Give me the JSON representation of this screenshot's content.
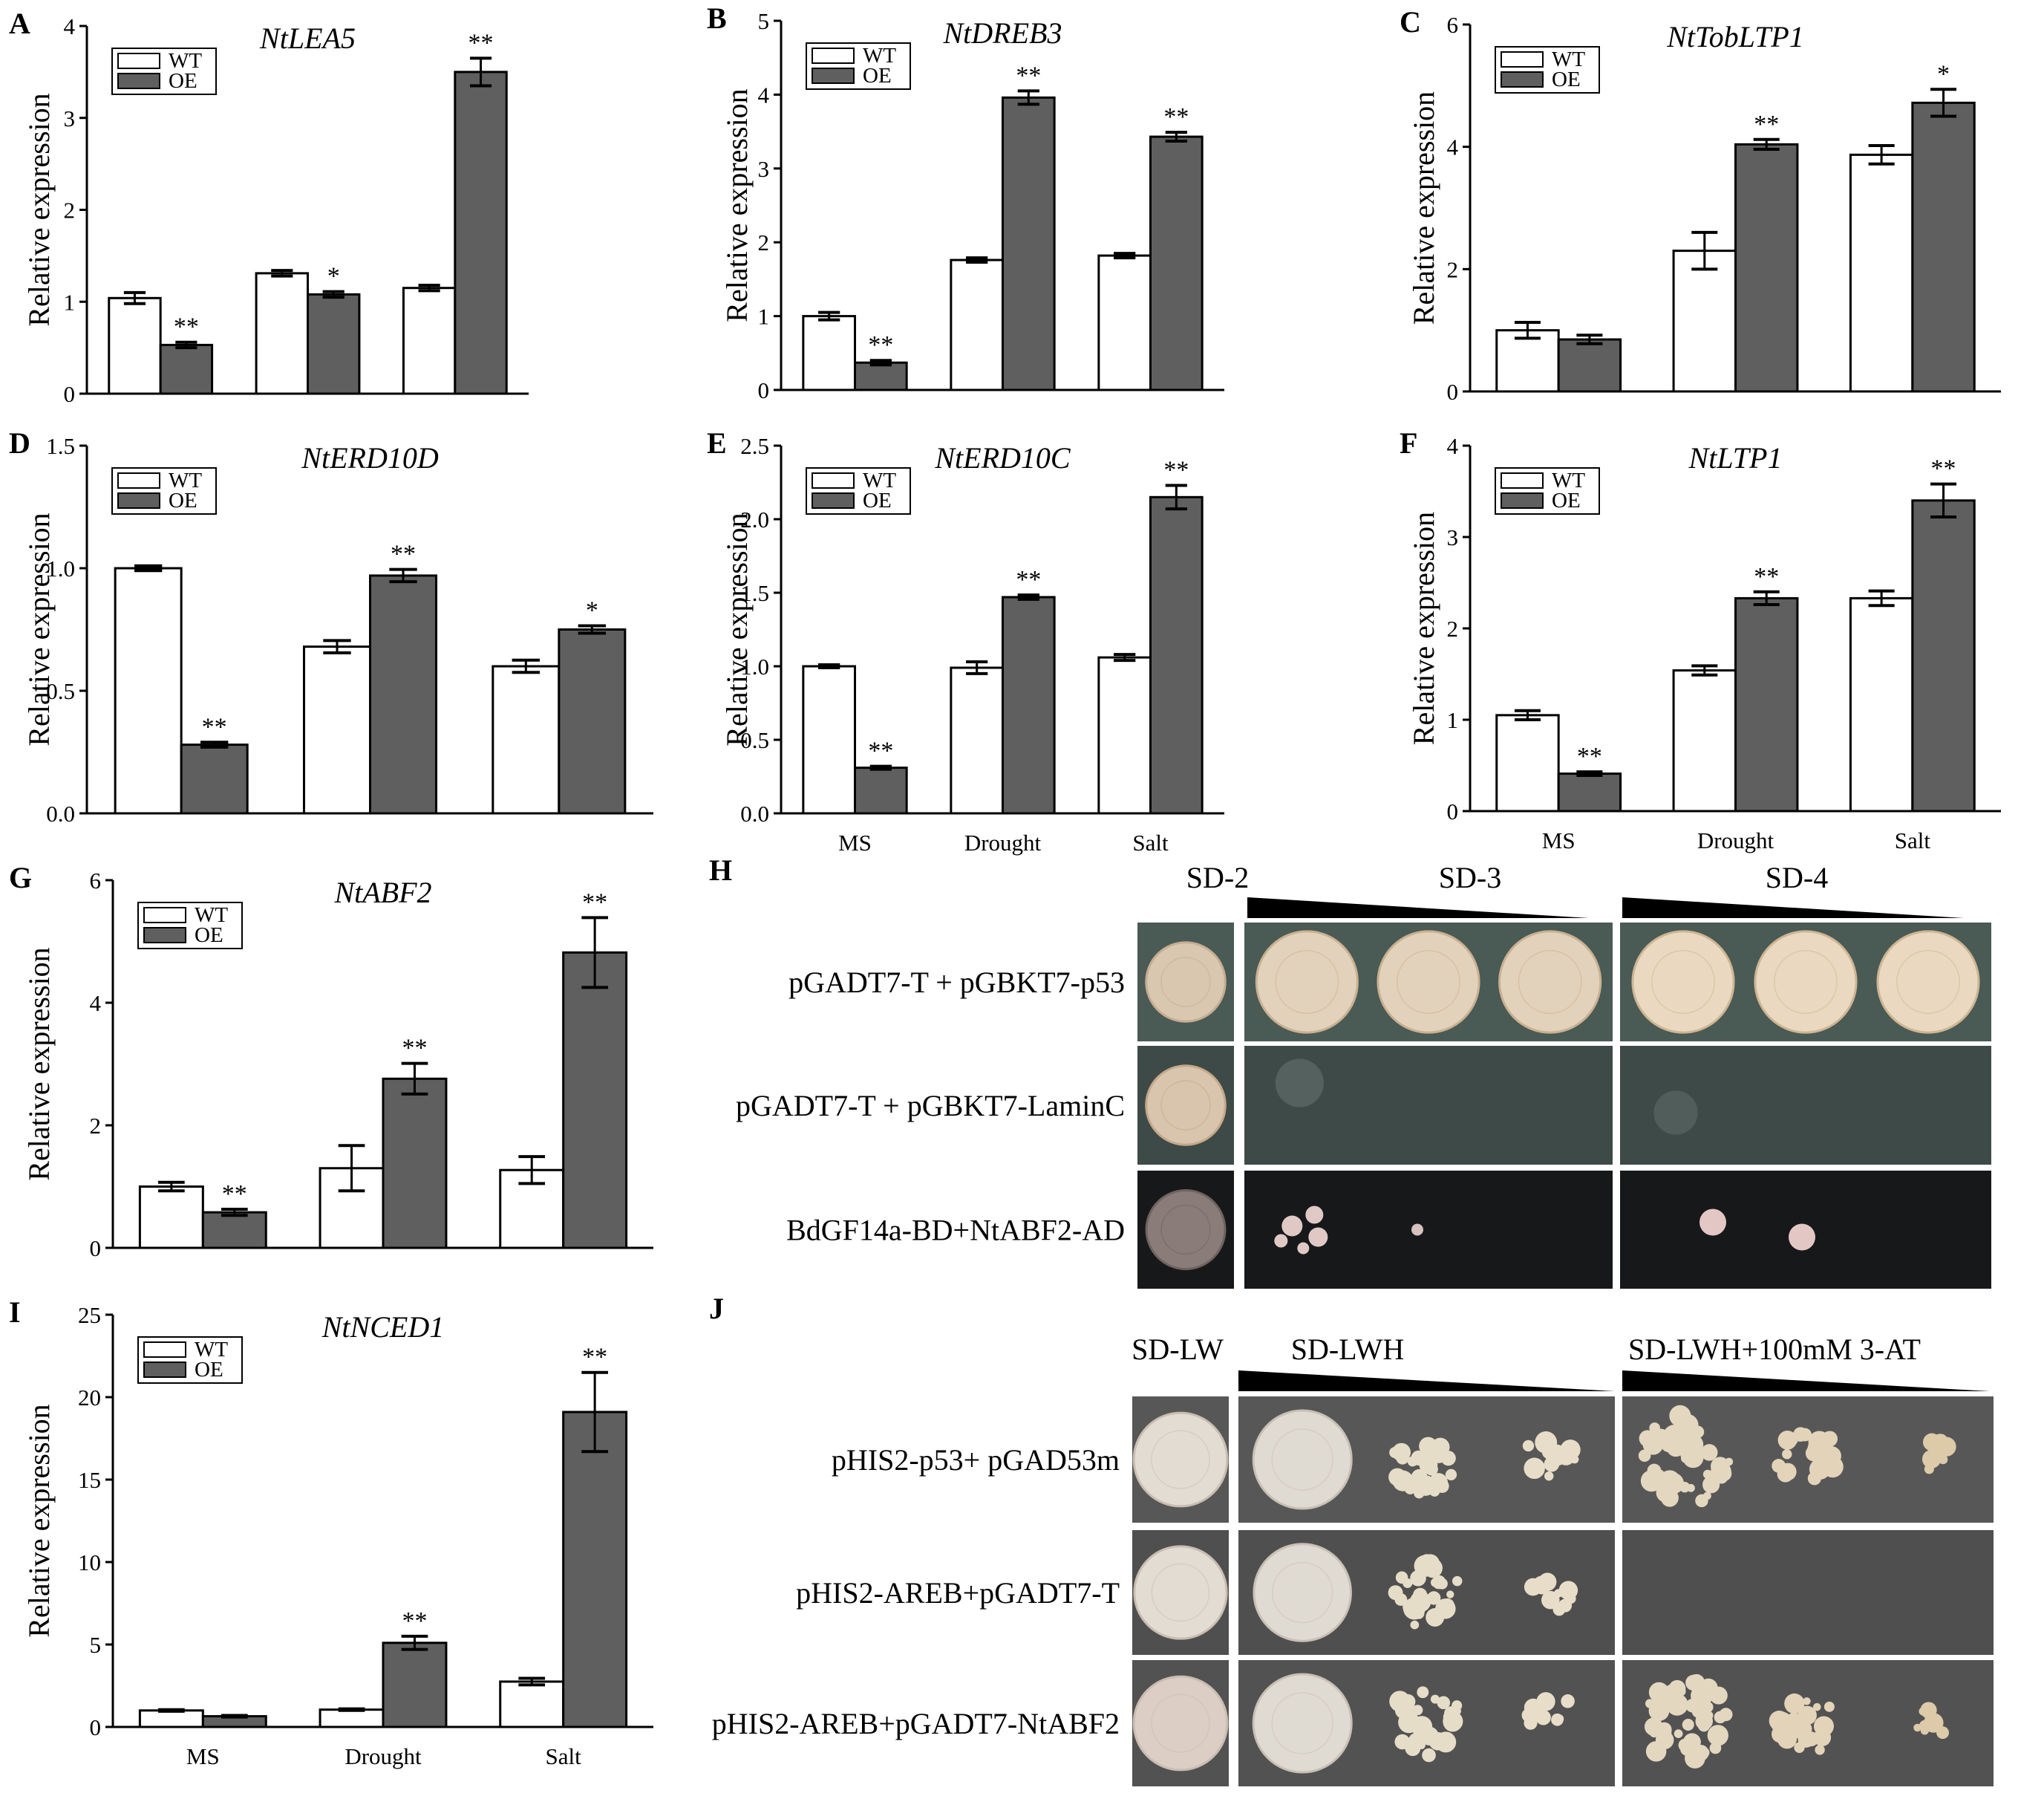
{
  "chart_data": [
    {
      "panel": "A",
      "type": "bar",
      "title": "NtLEA5",
      "ylabel": "Relative expression",
      "categories": [
        "",
        "",
        ""
      ],
      "ylim": [
        0,
        4
      ],
      "yticks": [
        0,
        1,
        2,
        3,
        4
      ],
      "series": [
        {
          "name": "WT",
          "values": [
            1.04,
            1.31,
            1.15
          ],
          "errors": [
            0.06,
            0.03,
            0.03
          ]
        },
        {
          "name": "OE",
          "values": [
            0.53,
            1.08,
            3.5
          ],
          "errors": [
            0.03,
            0.03,
            0.15
          ]
        }
      ],
      "significance": [
        "**",
        "*",
        "**"
      ]
    },
    {
      "panel": "B",
      "type": "bar",
      "title": "NtDREB3",
      "ylabel": "Relative expression",
      "categories": [
        "",
        "",
        ""
      ],
      "ylim": [
        0,
        5
      ],
      "yticks": [
        0,
        1,
        2,
        3,
        4,
        5
      ],
      "series": [
        {
          "name": "WT",
          "values": [
            1.0,
            1.76,
            1.82
          ],
          "errors": [
            0.05,
            0.03,
            0.03
          ]
        },
        {
          "name": "OE",
          "values": [
            0.37,
            3.96,
            3.43
          ],
          "errors": [
            0.03,
            0.09,
            0.06
          ]
        }
      ],
      "significance": [
        "**",
        "**",
        "**"
      ]
    },
    {
      "panel": "C",
      "type": "bar",
      "title": "NtTobLTP1",
      "ylabel": "Relative expression",
      "categories": [
        "",
        "",
        ""
      ],
      "ylim": [
        0,
        6
      ],
      "yticks": [
        0,
        2,
        4,
        6
      ],
      "series": [
        {
          "name": "WT",
          "values": [
            1.0,
            2.3,
            3.87
          ],
          "errors": [
            0.13,
            0.3,
            0.15
          ]
        },
        {
          "name": "OE",
          "values": [
            0.85,
            4.04,
            4.72
          ],
          "errors": [
            0.07,
            0.08,
            0.22
          ]
        }
      ],
      "significance": [
        "",
        "**",
        "*"
      ]
    },
    {
      "panel": "D",
      "type": "bar",
      "title": "NtERD10D",
      "ylabel": "Relative expression",
      "categories": [
        "",
        "",
        ""
      ],
      "ylim": [
        0,
        1.5
      ],
      "yticks": [
        0.0,
        0.5,
        1.0,
        1.5
      ],
      "series": [
        {
          "name": "WT",
          "values": [
            1.0,
            0.68,
            0.6
          ],
          "errors": [
            0.01,
            0.025,
            0.025
          ]
        },
        {
          "name": "OE",
          "values": [
            0.28,
            0.97,
            0.75
          ],
          "errors": [
            0.01,
            0.025,
            0.015
          ]
        }
      ],
      "significance": [
        "**",
        "**",
        "*"
      ]
    },
    {
      "panel": "E",
      "type": "bar",
      "title": "NtERD10C",
      "ylabel": "Relative expression",
      "categories": [
        "MS",
        "Drought",
        "Salt"
      ],
      "ylim": [
        0,
        2.5
      ],
      "yticks": [
        0.0,
        0.5,
        1.0,
        1.5,
        2.0,
        2.5
      ],
      "series": [
        {
          "name": "WT",
          "values": [
            1.0,
            0.99,
            1.06
          ],
          "errors": [
            0.01,
            0.04,
            0.02
          ]
        },
        {
          "name": "OE",
          "values": [
            0.31,
            1.47,
            2.15
          ],
          "errors": [
            0.01,
            0.015,
            0.08
          ]
        }
      ],
      "significance": [
        "**",
        "**",
        "**"
      ]
    },
    {
      "panel": "F",
      "type": "bar",
      "title": "NtLTP1",
      "ylabel": "Relative expression",
      "categories": [
        "MS",
        "Drought",
        "Salt"
      ],
      "ylim": [
        0,
        4
      ],
      "yticks": [
        0,
        1,
        2,
        3,
        4
      ],
      "series": [
        {
          "name": "WT",
          "values": [
            1.05,
            1.54,
            2.33
          ],
          "errors": [
            0.05,
            0.05,
            0.08
          ]
        },
        {
          "name": "OE",
          "values": [
            0.41,
            2.33,
            3.4
          ],
          "errors": [
            0.02,
            0.07,
            0.18
          ]
        }
      ],
      "significance": [
        "**",
        "**",
        "**"
      ]
    },
    {
      "panel": "G",
      "type": "bar",
      "title": "NtABF2",
      "ylabel": "Relative expression",
      "categories": [
        "",
        "",
        ""
      ],
      "ylim": [
        0,
        6
      ],
      "yticks": [
        0,
        2,
        4,
        6
      ],
      "series": [
        {
          "name": "WT",
          "values": [
            1.0,
            1.3,
            1.27
          ],
          "errors": [
            0.07,
            0.37,
            0.22
          ]
        },
        {
          "name": "OE",
          "values": [
            0.58,
            2.76,
            4.82
          ],
          "errors": [
            0.05,
            0.25,
            0.57
          ]
        }
      ],
      "significance": [
        "**",
        "**",
        "**"
      ]
    },
    {
      "panel": "I",
      "type": "bar",
      "title": "NtNCED1",
      "ylabel": "Relative expression",
      "categories": [
        "MS",
        "Drought",
        "Salt"
      ],
      "ylim": [
        0,
        25
      ],
      "yticks": [
        0,
        5,
        10,
        15,
        20,
        25
      ],
      "series": [
        {
          "name": "WT",
          "values": [
            1.0,
            1.05,
            2.75
          ],
          "errors": [
            0.05,
            0.05,
            0.2
          ]
        },
        {
          "name": "OE",
          "values": [
            0.65,
            5.1,
            19.1
          ],
          "errors": [
            0.05,
            0.4,
            2.4
          ]
        }
      ],
      "significance": [
        "",
        "**",
        "**"
      ]
    }
  ],
  "yeast": [
    {
      "panel": "H",
      "headers": [
        "SD-2",
        "SD-3",
        "SD-4"
      ],
      "rows": [
        "pGADT7-T + pGBKT7-p53",
        "pGADT7-T + pGBKT7-LaminC",
        "BdGF14a-BD+NtABF2-AD"
      ],
      "plate_colors": [
        "#4a5a55",
        "#3e4a47",
        "#17181a"
      ]
    },
    {
      "panel": "J",
      "headers": [
        "SD-LW",
        "SD-LWH",
        "SD-LWH+100mM 3-AT"
      ],
      "rows": [
        "pHIS2-p53+ pGAD53m",
        "pHIS2-AREB+pGADT7-T",
        "pHIS2-AREB+pGADT7-NtABF2"
      ],
      "plate_colors": [
        "#575757",
        "#4f4f4f",
        "#525252"
      ]
    }
  ],
  "colors": {
    "wt_fill": "#ffffff",
    "oe_fill": "#5f5f5f",
    "axis": "#000000"
  }
}
